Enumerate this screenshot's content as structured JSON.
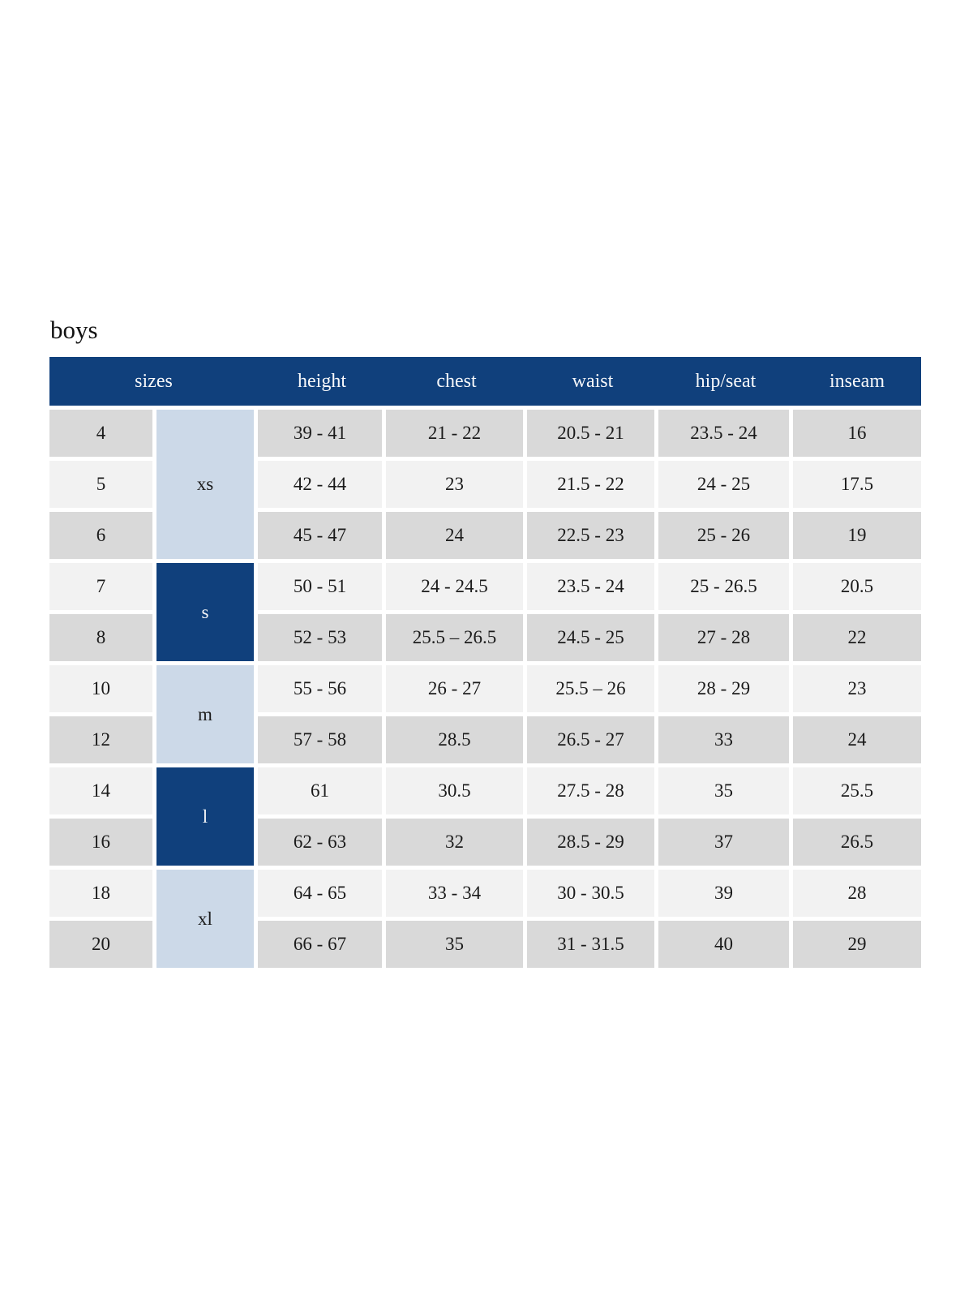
{
  "title": "boys",
  "colors": {
    "header_navy": "#10407c",
    "group_light_blue": "#ccd9e8",
    "row_gray": "#d9d9d9",
    "row_light": "#f2f2f2",
    "header_text": "#f7f8fa",
    "body_text": "#1b1b1b"
  },
  "table": {
    "headers": [
      "sizes",
      "height",
      "chest",
      "waist",
      "hip/seat",
      "inseam"
    ],
    "groups": [
      {
        "label": "xs",
        "rows": 3,
        "style": "light"
      },
      {
        "label": "s",
        "rows": 2,
        "style": "dark"
      },
      {
        "label": "m",
        "rows": 2,
        "style": "light"
      },
      {
        "label": "l",
        "rows": 2,
        "style": "dark"
      },
      {
        "label": "xl",
        "rows": 2,
        "style": "light"
      }
    ],
    "rows": [
      {
        "size": "4",
        "height": "39 - 41",
        "chest": "21 - 22",
        "waist": "20.5 - 21",
        "hip_seat": "23.5 - 24",
        "inseam": "16"
      },
      {
        "size": "5",
        "height": "42 - 44",
        "chest": "23",
        "waist": "21.5 - 22",
        "hip_seat": "24 - 25",
        "inseam": "17.5"
      },
      {
        "size": "6",
        "height": "45 - 47",
        "chest": "24",
        "waist": "22.5 - 23",
        "hip_seat": "25 - 26",
        "inseam": "19"
      },
      {
        "size": "7",
        "height": "50 - 51",
        "chest": "24 - 24.5",
        "waist": "23.5 - 24",
        "hip_seat": "25 - 26.5",
        "inseam": "20.5"
      },
      {
        "size": "8",
        "height": "52 - 53",
        "chest": "25.5 – 26.5",
        "waist": "24.5 - 25",
        "hip_seat": "27 - 28",
        "inseam": "22"
      },
      {
        "size": "10",
        "height": "55 - 56",
        "chest": "26 - 27",
        "waist": "25.5 – 26",
        "hip_seat": "28 - 29",
        "inseam": "23"
      },
      {
        "size": "12",
        "height": "57 - 58",
        "chest": "28.5",
        "waist": "26.5 - 27",
        "hip_seat": "33",
        "inseam": "24"
      },
      {
        "size": "14",
        "height": "61",
        "chest": "30.5",
        "waist": "27.5 - 28",
        "hip_seat": "35",
        "inseam": "25.5"
      },
      {
        "size": "16",
        "height": "62 - 63",
        "chest": "32",
        "waist": "28.5 - 29",
        "hip_seat": "37",
        "inseam": "26.5"
      },
      {
        "size": "18",
        "height": "64 - 65",
        "chest": "33 - 34",
        "waist": "30 - 30.5",
        "hip_seat": "39",
        "inseam": "28"
      },
      {
        "size": "20",
        "height": "66 - 67",
        "chest": "35",
        "waist": "31 - 31.5",
        "hip_seat": "40",
        "inseam": "29"
      }
    ]
  }
}
